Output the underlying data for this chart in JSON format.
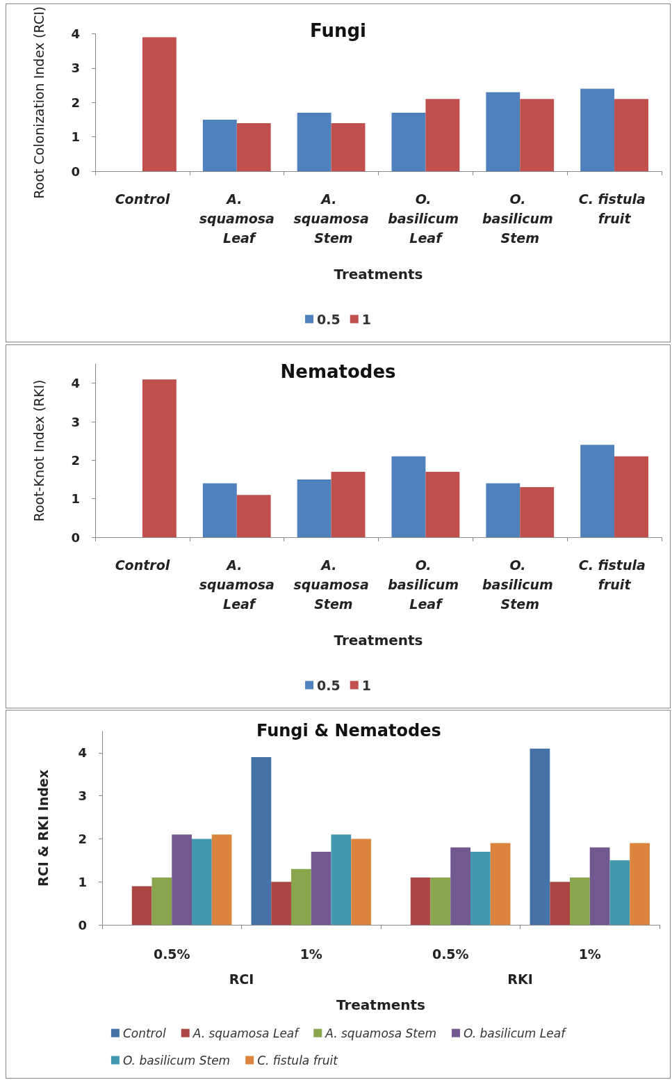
{
  "chart_data": [
    {
      "type": "bar",
      "title": "Fungi",
      "xlabel": "Treatments",
      "ylabel": "Root Colonization Index (RCI)",
      "categories": [
        "Control",
        "A. squamosa Leaf",
        "A. squamosa Stem",
        "O. basilicum Leaf",
        "O. basilicum Stem",
        "C. fistula fruit"
      ],
      "series": [
        {
          "name": "0.5",
          "color": "#4f81bd",
          "values": [
            null,
            1.5,
            1.7,
            1.7,
            2.3,
            2.4
          ]
        },
        {
          "name": "1",
          "color": "#c0504d",
          "values": [
            3.9,
            1.4,
            1.4,
            2.1,
            2.1,
            2.1
          ]
        }
      ],
      "ylim": [
        0,
        4
      ],
      "yticks": [
        0,
        1,
        2,
        3,
        4
      ],
      "grid": false,
      "legend": "bottom"
    },
    {
      "type": "bar",
      "title": "Nematodes",
      "xlabel": "Treatments",
      "ylabel": "Root-Knot Index (RKI)",
      "categories": [
        "Control",
        "A. squamosa Leaf",
        "A. squamosa Stem",
        "O. basilicum Leaf",
        "O. basilicum Stem",
        "C. fistula fruit"
      ],
      "series": [
        {
          "name": "0.5",
          "color": "#4f81bd",
          "values": [
            null,
            1.4,
            1.5,
            2.1,
            1.4,
            2.4
          ]
        },
        {
          "name": "1",
          "color": "#c0504d",
          "values": [
            4.1,
            1.1,
            1.7,
            1.7,
            1.3,
            2.1
          ]
        }
      ],
      "ylim": [
        0,
        4.5
      ],
      "yticks": [
        0,
        1,
        2,
        3,
        4
      ],
      "grid": false,
      "legend": "bottom"
    },
    {
      "type": "bar",
      "title": "Fungi & Nematodes",
      "xlabel": "Treatments",
      "ylabel": "RCI & RKI Index",
      "categories": [
        "0.5%",
        "1%",
        "0.5%",
        "1%"
      ],
      "annotations": [
        "RCI",
        "RKI"
      ],
      "series": [
        {
          "name": "Control",
          "color": "#4572a7",
          "values": [
            null,
            3.9,
            null,
            4.1
          ]
        },
        {
          "name": "A. squamosa Leaf",
          "color": "#aa4643",
          "values": [
            0.9,
            1.0,
            1.1,
            1.0
          ]
        },
        {
          "name": "A. squamosa Stem",
          "color": "#89a54e",
          "values": [
            1.1,
            1.3,
            1.1,
            1.1
          ]
        },
        {
          "name": "O. basilicum Leaf",
          "color": "#71588f",
          "values": [
            2.1,
            1.7,
            1.8,
            1.8
          ]
        },
        {
          "name": "O. basilicum Stem",
          "color": "#4198af",
          "values": [
            2.0,
            2.1,
            1.7,
            1.5
          ]
        },
        {
          "name": "C. fistula fruit",
          "color": "#db843d",
          "values": [
            2.1,
            2.0,
            1.9,
            1.9
          ]
        }
      ],
      "ylim": [
        0,
        4.5
      ],
      "yticks": [
        0,
        1,
        2,
        3,
        4
      ],
      "grid": false,
      "legend": "bottom"
    }
  ]
}
